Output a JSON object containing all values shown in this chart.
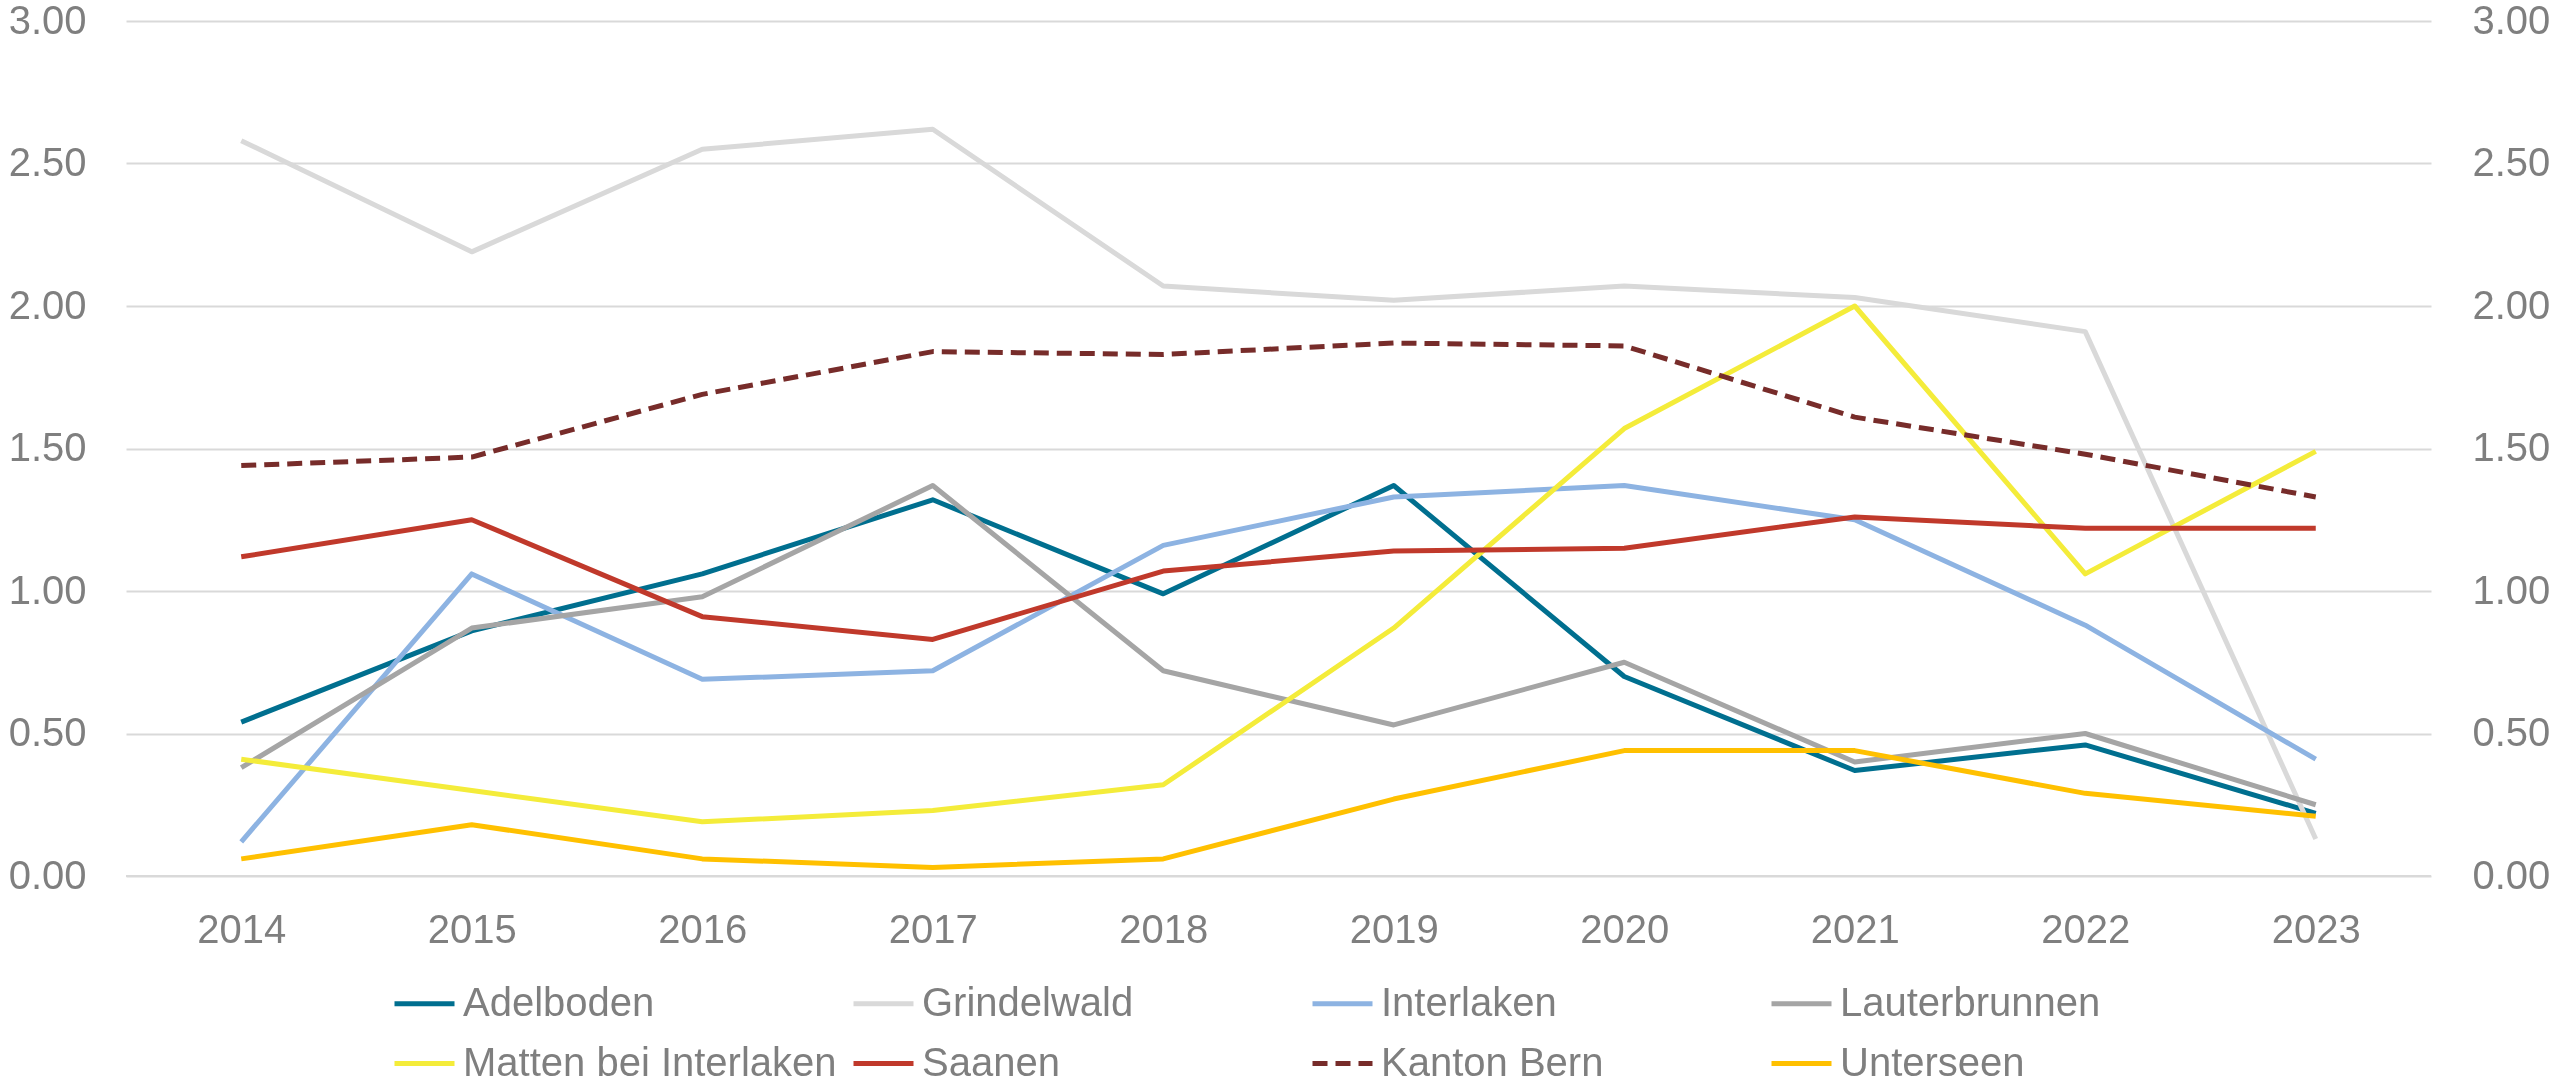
{
  "chart_data": {
    "type": "line",
    "categories": [
      "2014",
      "2015",
      "2016",
      "2017",
      "2018",
      "2019",
      "2020",
      "2021",
      "2022",
      "2023"
    ],
    "series": [
      {
        "name": "Adelboden",
        "color": "#006f8f",
        "values": [
          0.54,
          0.86,
          1.06,
          1.32,
          0.99,
          1.37,
          0.7,
          0.37,
          0.46,
          0.22
        ]
      },
      {
        "name": "Grindelwald",
        "color": "#d9d9d9",
        "values": [
          2.58,
          2.19,
          2.55,
          2.62,
          2.07,
          2.02,
          2.07,
          2.03,
          1.91,
          0.13
        ]
      },
      {
        "name": "Interlaken",
        "color": "#8db3e2",
        "values": [
          0.12,
          1.06,
          0.69,
          0.72,
          1.16,
          1.33,
          1.37,
          1.25,
          0.88,
          0.41
        ]
      },
      {
        "name": "Lauterbrunnen",
        "color": "#a5a5a5",
        "values": [
          0.38,
          0.87,
          0.98,
          1.37,
          0.72,
          0.53,
          0.75,
          0.4,
          0.5,
          0.25
        ]
      },
      {
        "name": "Matten bei Interlaken",
        "color": "#f4ec3a",
        "values": [
          0.41,
          0.3,
          0.19,
          0.23,
          0.32,
          0.87,
          1.57,
          2.0,
          1.06,
          1.49
        ]
      },
      {
        "name": "Saanen",
        "color": "#c0392b",
        "values": [
          1.12,
          1.25,
          0.91,
          0.83,
          1.07,
          1.14,
          1.15,
          1.26,
          1.22,
          1.22
        ]
      },
      {
        "name": "Kanton Bern",
        "color": "#772c2a",
        "line_style": "dashed",
        "values": [
          1.44,
          1.47,
          1.69,
          1.84,
          1.83,
          1.87,
          1.86,
          1.61,
          1.48,
          1.33
        ]
      },
      {
        "name": "Unterseen",
        "color": "#ffc000",
        "values": [
          0.06,
          0.18,
          0.06,
          0.03,
          0.06,
          0.27,
          0.44,
          0.44,
          0.29,
          0.21
        ]
      }
    ],
    "ylim": [
      0,
      3
    ],
    "yticks": [
      {
        "value": 0,
        "label": "0.00"
      },
      {
        "value": 0.5,
        "label": "0.50"
      },
      {
        "value": 1,
        "label": "1.00"
      },
      {
        "value": 1.5,
        "label": "1.50"
      },
      {
        "value": 2,
        "label": "2.00"
      },
      {
        "value": 2.5,
        "label": "2.50"
      },
      {
        "value": 3,
        "label": "3.00"
      }
    ],
    "y2lim": [
      0,
      3
    ],
    "y2ticks": [
      {
        "value": 0,
        "label": "0.00"
      },
      {
        "value": 0.5,
        "label": "0.50"
      },
      {
        "value": 1,
        "label": "1.00"
      },
      {
        "value": 1.5,
        "label": "1.50"
      },
      {
        "value": 2,
        "label": "2.00"
      },
      {
        "value": 2.5,
        "label": "2.50"
      },
      {
        "value": 3,
        "label": "3.00"
      }
    ],
    "grid": "y",
    "legend": "bottom",
    "line_style": "solid"
  }
}
